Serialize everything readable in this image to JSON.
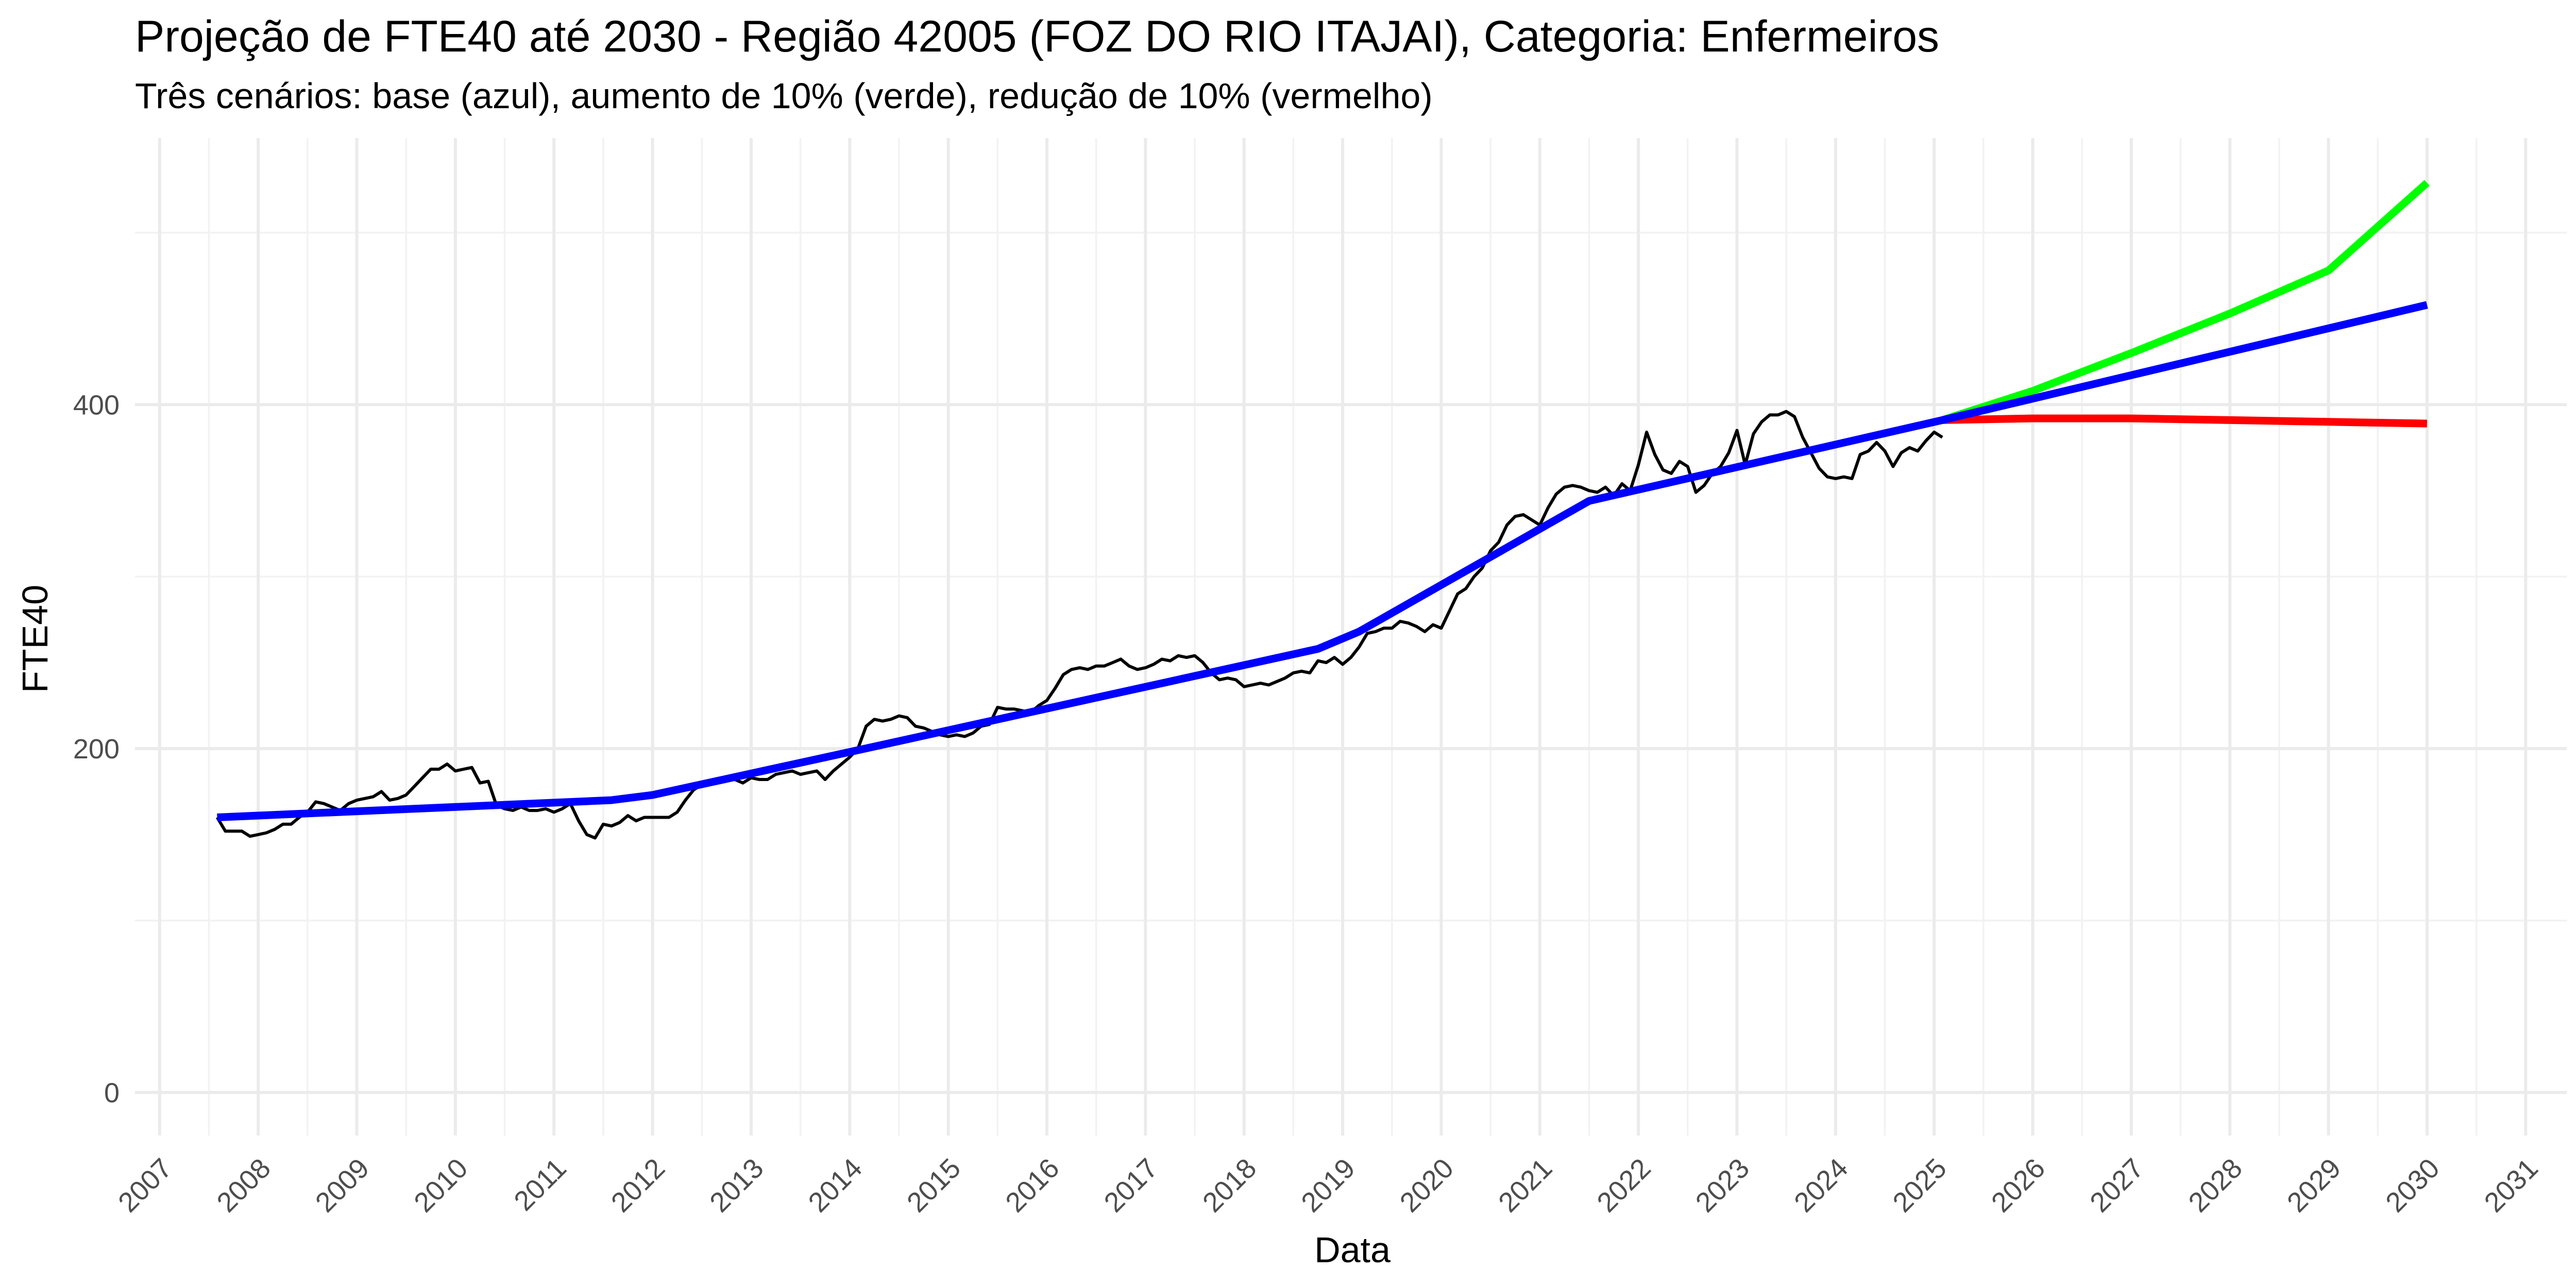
{
  "chart_data": {
    "type": "line",
    "title": "Projeção de FTE40 até 2030 - Região 42005 (FOZ DO RIO ITAJAI), Categoria: Enfermeiros",
    "subtitle": "Três cenários: base (azul), aumento de 10% (verde), redução de 10% (vermelho)",
    "xlabel": "Data",
    "ylabel": "FTE40",
    "xlim": [
      "2006-10-01",
      "2031-06-01"
    ],
    "ylim": [
      -25,
      555
    ],
    "x_ticks": [
      "2007",
      "2008",
      "2009",
      "2010",
      "2011",
      "2012",
      "2013",
      "2014",
      "2015",
      "2016",
      "2017",
      "2018",
      "2019",
      "2020",
      "2021",
      "2022",
      "2023",
      "2024",
      "2025",
      "2026",
      "2027",
      "2028",
      "2029",
      "2030",
      "2031"
    ],
    "y_ticks": [
      0,
      200,
      400
    ],
    "grid": true,
    "legend": "none",
    "series": [
      {
        "color": "#000000",
        "points": [
          [
            "2007-08",
            160
          ],
          [
            "2007-09",
            152
          ],
          [
            "2007-10",
            152
          ],
          [
            "2007-11",
            152
          ],
          [
            "2007-12",
            149
          ],
          [
            "2008-01",
            150
          ],
          [
            "2008-02",
            151
          ],
          [
            "2008-03",
            153
          ],
          [
            "2008-04",
            156
          ],
          [
            "2008-05",
            156
          ],
          [
            "2008-06",
            160
          ],
          [
            "2008-07",
            163
          ],
          [
            "2008-08",
            169
          ],
          [
            "2008-09",
            168
          ],
          [
            "2008-10",
            166
          ],
          [
            "2008-11",
            164
          ],
          [
            "2008-12",
            168
          ],
          [
            "2009-01",
            170
          ],
          [
            "2009-02",
            171
          ],
          [
            "2009-03",
            172
          ],
          [
            "2009-04",
            175
          ],
          [
            "2009-05",
            170
          ],
          [
            "2009-06",
            171
          ],
          [
            "2009-07",
            173
          ],
          [
            "2009-08",
            178
          ],
          [
            "2009-09",
            183
          ],
          [
            "2009-10",
            188
          ],
          [
            "2009-11",
            188
          ],
          [
            "2009-12",
            191
          ],
          [
            "2010-01",
            187
          ],
          [
            "2010-02",
            188
          ],
          [
            "2010-03",
            189
          ],
          [
            "2010-04",
            180
          ],
          [
            "2010-05",
            181
          ],
          [
            "2010-06",
            167
          ],
          [
            "2010-07",
            165
          ],
          [
            "2010-08",
            164
          ],
          [
            "2010-09",
            166
          ],
          [
            "2010-10",
            164
          ],
          [
            "2010-11",
            164
          ],
          [
            "2010-12",
            165
          ],
          [
            "2011-01",
            163
          ],
          [
            "2011-02",
            165
          ],
          [
            "2011-03",
            168
          ],
          [
            "2011-04",
            158
          ],
          [
            "2011-05",
            150
          ],
          [
            "2011-06",
            148
          ],
          [
            "2011-07",
            156
          ],
          [
            "2011-08",
            155
          ],
          [
            "2011-09",
            157
          ],
          [
            "2011-10",
            161
          ],
          [
            "2011-11",
            158
          ],
          [
            "2011-12",
            160
          ],
          [
            "2012-01",
            160
          ],
          [
            "2012-02",
            160
          ],
          [
            "2012-03",
            160
          ],
          [
            "2012-04",
            163
          ],
          [
            "2012-05",
            170
          ],
          [
            "2012-06",
            176
          ],
          [
            "2012-07",
            179
          ],
          [
            "2012-08",
            180
          ],
          [
            "2012-09",
            180
          ],
          [
            "2012-10",
            182
          ],
          [
            "2012-11",
            182
          ],
          [
            "2012-12",
            180
          ],
          [
            "2013-01",
            183
          ],
          [
            "2013-02",
            182
          ],
          [
            "2013-03",
            182
          ],
          [
            "2013-04",
            185
          ],
          [
            "2013-05",
            186
          ],
          [
            "2013-06",
            187
          ],
          [
            "2013-07",
            185
          ],
          [
            "2013-08",
            186
          ],
          [
            "2013-09",
            187
          ],
          [
            "2013-10",
            182
          ],
          [
            "2013-11",
            187
          ],
          [
            "2013-12",
            191
          ],
          [
            "2014-01",
            195
          ],
          [
            "2014-02",
            200
          ],
          [
            "2014-03",
            213
          ],
          [
            "2014-04",
            217
          ],
          [
            "2014-05",
            216
          ],
          [
            "2014-06",
            217
          ],
          [
            "2014-07",
            219
          ],
          [
            "2014-08",
            218
          ],
          [
            "2014-09",
            213
          ],
          [
            "2014-10",
            212
          ],
          [
            "2014-11",
            210
          ],
          [
            "2014-12",
            208
          ],
          [
            "2015-01",
            207
          ],
          [
            "2015-02",
            208
          ],
          [
            "2015-03",
            207
          ],
          [
            "2015-04",
            209
          ],
          [
            "2015-05",
            213
          ],
          [
            "2015-06",
            214
          ],
          [
            "2015-07",
            224
          ],
          [
            "2015-08",
            223
          ],
          [
            "2015-09",
            223
          ],
          [
            "2015-10",
            222
          ],
          [
            "2015-11",
            221
          ],
          [
            "2015-12",
            225
          ],
          [
            "2016-01",
            228
          ],
          [
            "2016-02",
            235
          ],
          [
            "2016-03",
            243
          ],
          [
            "2016-04",
            246
          ],
          [
            "2016-05",
            247
          ],
          [
            "2016-06",
            246
          ],
          [
            "2016-07",
            248
          ],
          [
            "2016-08",
            248
          ],
          [
            "2016-09",
            250
          ],
          [
            "2016-10",
            252
          ],
          [
            "2016-11",
            248
          ],
          [
            "2016-12",
            246
          ],
          [
            "2017-01",
            247
          ],
          [
            "2017-02",
            249
          ],
          [
            "2017-03",
            252
          ],
          [
            "2017-04",
            251
          ],
          [
            "2017-05",
            254
          ],
          [
            "2017-06",
            253
          ],
          [
            "2017-07",
            254
          ],
          [
            "2017-08",
            250
          ],
          [
            "2017-09",
            244
          ],
          [
            "2017-10",
            240
          ],
          [
            "2017-11",
            241
          ],
          [
            "2017-12",
            240
          ],
          [
            "2018-01",
            236
          ],
          [
            "2018-02",
            237
          ],
          [
            "2018-03",
            238
          ],
          [
            "2018-04",
            237
          ],
          [
            "2018-05",
            239
          ],
          [
            "2018-06",
            241
          ],
          [
            "2018-07",
            244
          ],
          [
            "2018-08",
            245
          ],
          [
            "2018-09",
            244
          ],
          [
            "2018-10",
            251
          ],
          [
            "2018-11",
            250
          ],
          [
            "2018-12",
            253
          ],
          [
            "2019-01",
            249
          ],
          [
            "2019-02",
            253
          ],
          [
            "2019-03",
            259
          ],
          [
            "2019-04",
            267
          ],
          [
            "2019-05",
            268
          ],
          [
            "2019-06",
            270
          ],
          [
            "2019-07",
            270
          ],
          [
            "2019-08",
            274
          ],
          [
            "2019-09",
            273
          ],
          [
            "2019-10",
            271
          ],
          [
            "2019-11",
            268
          ],
          [
            "2019-12",
            272
          ],
          [
            "2020-01",
            270
          ],
          [
            "2020-02",
            280
          ],
          [
            "2020-03",
            290
          ],
          [
            "2020-04",
            293
          ],
          [
            "2020-05",
            300
          ],
          [
            "2020-06",
            305
          ],
          [
            "2020-07",
            315
          ],
          [
            "2020-08",
            320
          ],
          [
            "2020-09",
            330
          ],
          [
            "2020-10",
            335
          ],
          [
            "2020-11",
            336
          ],
          [
            "2020-12",
            333
          ],
          [
            "2021-01",
            330
          ],
          [
            "2021-02",
            340
          ],
          [
            "2021-03",
            348
          ],
          [
            "2021-04",
            352
          ],
          [
            "2021-05",
            353
          ],
          [
            "2021-06",
            352
          ],
          [
            "2021-07",
            350
          ],
          [
            "2021-08",
            349
          ],
          [
            "2021-09",
            352
          ],
          [
            "2021-10",
            347
          ],
          [
            "2021-11",
            354
          ],
          [
            "2021-12",
            350
          ],
          [
            "2022-01",
            365
          ],
          [
            "2022-02",
            384
          ],
          [
            "2022-03",
            371
          ],
          [
            "2022-04",
            362
          ],
          [
            "2022-05",
            360
          ],
          [
            "2022-06",
            367
          ],
          [
            "2022-07",
            364
          ],
          [
            "2022-08",
            349
          ],
          [
            "2022-09",
            353
          ],
          [
            "2022-10",
            360
          ],
          [
            "2022-11",
            364
          ],
          [
            "2022-12",
            372
          ],
          [
            "2023-01",
            385
          ],
          [
            "2023-02",
            365
          ],
          [
            "2023-03",
            383
          ],
          [
            "2023-04",
            390
          ],
          [
            "2023-05",
            394
          ],
          [
            "2023-06",
            394
          ],
          [
            "2023-07",
            396
          ],
          [
            "2023-08",
            393
          ],
          [
            "2023-09",
            381
          ],
          [
            "2023-10",
            372
          ],
          [
            "2023-11",
            363
          ],
          [
            "2023-12",
            358
          ],
          [
            "2024-01",
            357
          ],
          [
            "2024-02",
            358
          ],
          [
            "2024-03",
            357
          ],
          [
            "2024-04",
            371
          ],
          [
            "2024-05",
            373
          ],
          [
            "2024-06",
            378
          ],
          [
            "2024-07",
            373
          ],
          [
            "2024-08",
            364
          ],
          [
            "2024-09",
            372
          ],
          [
            "2024-10",
            375
          ],
          [
            "2024-11",
            373
          ],
          [
            "2024-12",
            379
          ],
          [
            "2025-01",
            384
          ],
          [
            "2025-02",
            381
          ]
        ]
      },
      {
        "color": "#0000ff",
        "points": [
          [
            "2007-08",
            160
          ],
          [
            "2011-08",
            170
          ],
          [
            "2012-01",
            173
          ],
          [
            "2014-01",
            198
          ],
          [
            "2018-10",
            258
          ],
          [
            "2019-03",
            268
          ],
          [
            "2021-07",
            344
          ],
          [
            "2025-02",
            391
          ],
          [
            "2030-01",
            458
          ]
        ]
      },
      {
        "color": "#00ff00",
        "points": [
          [
            "2025-02",
            391
          ],
          [
            "2026-01",
            408
          ],
          [
            "2027-01",
            430
          ],
          [
            "2028-01",
            453
          ],
          [
            "2029-01",
            478
          ],
          [
            "2030-01",
            529
          ]
        ]
      },
      {
        "color": "#ff0000",
        "points": [
          [
            "2025-02",
            391
          ],
          [
            "2026-01",
            392
          ],
          [
            "2027-01",
            392
          ],
          [
            "2028-01",
            391
          ],
          [
            "2029-01",
            390
          ],
          [
            "2030-01",
            389
          ]
        ]
      }
    ]
  }
}
